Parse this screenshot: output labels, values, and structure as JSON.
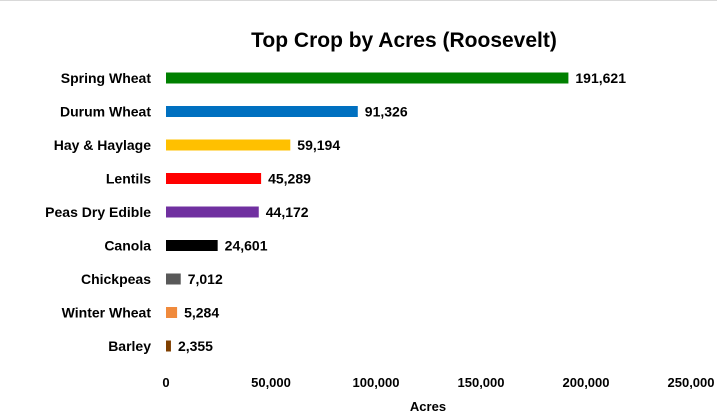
{
  "chart_data": {
    "type": "bar",
    "orientation": "horizontal",
    "title": "Top Crop by Acres (Roosevelt)",
    "xlabel": "Acres",
    "ylabel": "",
    "xlim": [
      0,
      250000
    ],
    "xticks": [
      0,
      50000,
      100000,
      150000,
      200000,
      250000
    ],
    "xtick_labels": [
      "0",
      "50,000",
      "100,000",
      "150,000",
      "200,000",
      "250,000"
    ],
    "grid": false,
    "legend": "none",
    "categories": [
      "Spring Wheat",
      "Durum Wheat",
      "Hay & Haylage",
      "Lentils",
      "Peas Dry Edible",
      "Canola",
      "Chickpeas",
      "Winter Wheat",
      "Barley"
    ],
    "values": [
      191621,
      91326,
      59194,
      45289,
      44172,
      24601,
      7012,
      5284,
      2355
    ],
    "value_labels": [
      "191,621",
      "91,326",
      "59,194",
      "45,289",
      "44,172",
      "24,601",
      "7,012",
      "5,284",
      "2,355"
    ],
    "colors": [
      "#008000",
      "#0070C0",
      "#FFC000",
      "#FF0000",
      "#7030A0",
      "#000000",
      "#595959",
      "#F08A3C",
      "#7F3F00"
    ]
  }
}
